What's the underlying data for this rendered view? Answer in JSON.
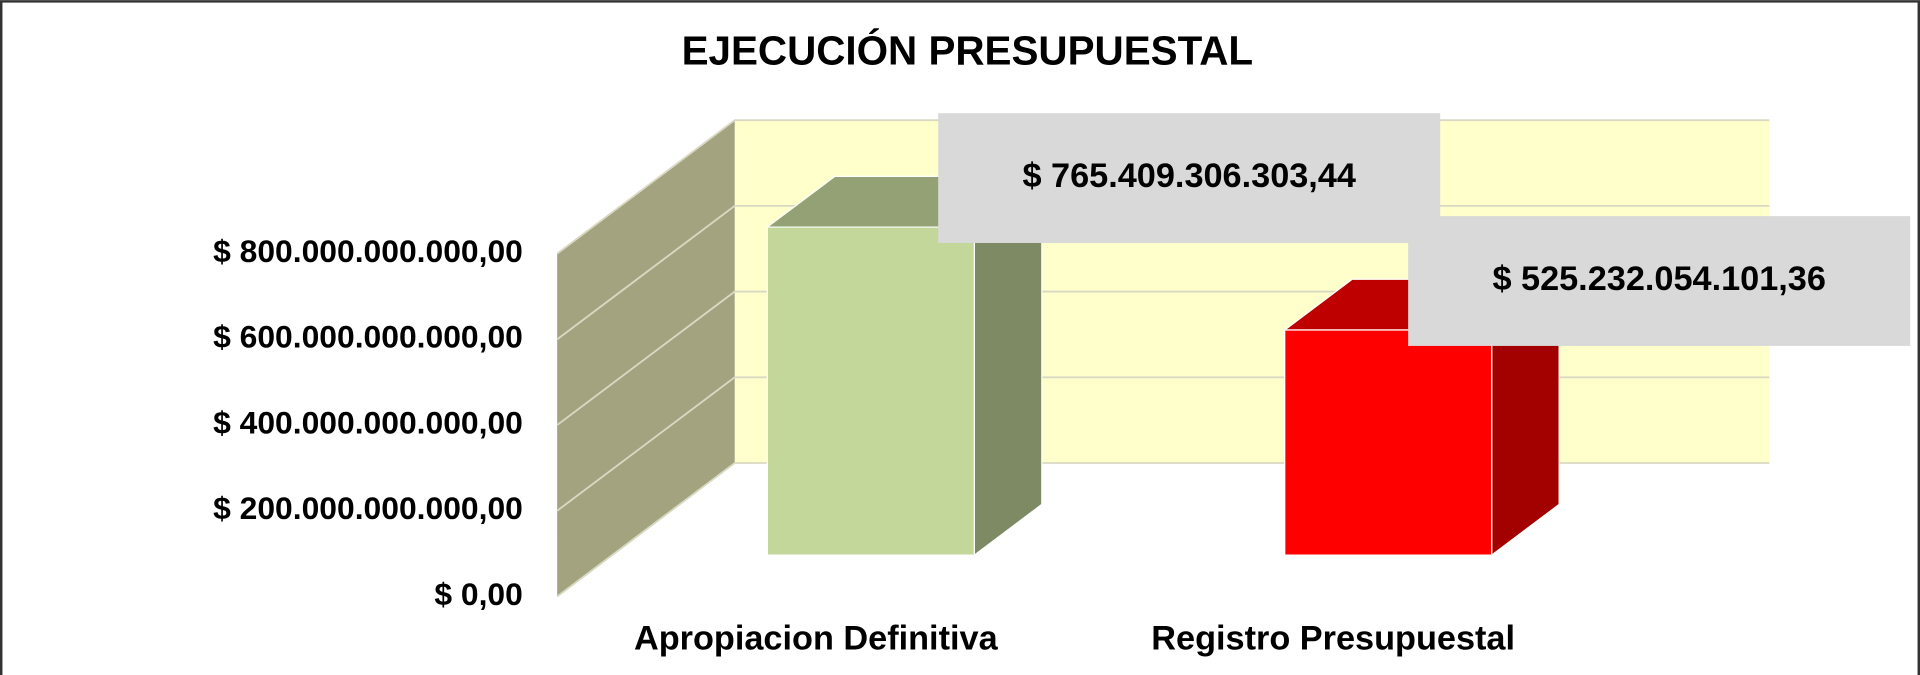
{
  "chart_data": {
    "type": "bar3d",
    "title": "EJECUCIÓN PRESUPUESTAL",
    "categories": [
      "Apropiacion Definitiva",
      "Registro Presupuestal"
    ],
    "values": [
      765409306303.44,
      525232054101.36
    ],
    "value_labels": [
      "$ 765.409.306.303,44",
      "$ 525.232.054.101,36"
    ],
    "colors": [
      "#c4d79b",
      "#ff0000"
    ],
    "ylim": [
      0,
      800000000000
    ],
    "yticks": [
      {
        "value": 0,
        "label": "$ 0,00"
      },
      {
        "value": 200000000000,
        "label": "$ 200.000.000.000,00"
      },
      {
        "value": 400000000000,
        "label": "$ 400.000.000.000,00"
      },
      {
        "value": 600000000000,
        "label": "$ 600.000.000.000,00"
      },
      {
        "value": 800000000000,
        "label": "$ 800.000.000.000,00"
      }
    ],
    "grid": true
  }
}
